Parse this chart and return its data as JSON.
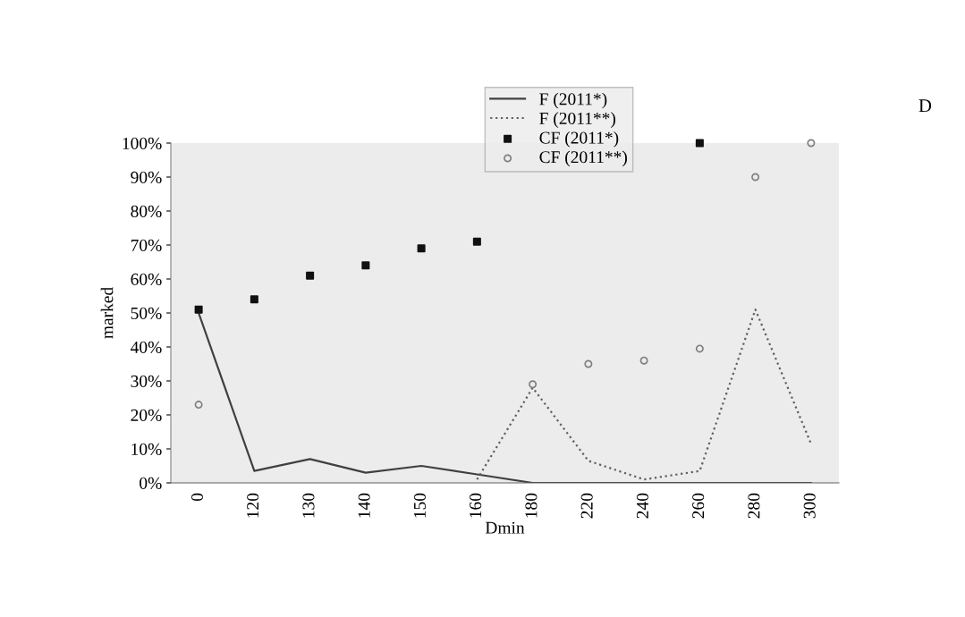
{
  "chart_data": {
    "type": "line",
    "xlabel": "Dmin",
    "ylabel": "marked",
    "annotations": [
      "D"
    ],
    "categories": [
      "0",
      "120",
      "130",
      "140",
      "150",
      "160",
      "180",
      "220",
      "240",
      "260",
      "280",
      "300"
    ],
    "ylim": [
      0,
      100
    ],
    "yticks": [
      {
        "value": 0,
        "label": "0%"
      },
      {
        "value": 10,
        "label": "10%"
      },
      {
        "value": 20,
        "label": "20%"
      },
      {
        "value": 30,
        "label": "30%"
      },
      {
        "value": 40,
        "label": "40%"
      },
      {
        "value": 50,
        "label": "50%"
      },
      {
        "value": 60,
        "label": "60%"
      },
      {
        "value": 70,
        "label": "70%"
      },
      {
        "value": 80,
        "label": "80%"
      },
      {
        "value": 90,
        "label": "90%"
      },
      {
        "value": 100,
        "label": "100%"
      }
    ],
    "grid": false,
    "legend": "top",
    "series": [
      {
        "name": "F (2011*)",
        "color": "#404040",
        "line_style": "solid",
        "marker": "none",
        "values": [
          50,
          3.5,
          7,
          3,
          5,
          2.5,
          0,
          0,
          0,
          0,
          0,
          0
        ]
      },
      {
        "name": "F (2011**)",
        "color": "#606060",
        "line_style": "dotted",
        "marker": "none",
        "values": [
          null,
          null,
          null,
          null,
          null,
          1,
          28,
          6.5,
          1,
          3.5,
          51,
          11.5
        ]
      },
      {
        "name": "CF (2011*)",
        "type": "scatter",
        "color": "#111111",
        "marker": "square",
        "values": [
          51,
          54,
          61,
          64,
          69,
          71,
          null,
          null,
          null,
          100,
          null,
          null
        ]
      },
      {
        "name": "CF (2011**)",
        "type": "scatter",
        "color": "#808080",
        "marker": "circle",
        "values": [
          23,
          null,
          null,
          null,
          null,
          null,
          29,
          35,
          36,
          39.5,
          90,
          100
        ]
      }
    ]
  }
}
